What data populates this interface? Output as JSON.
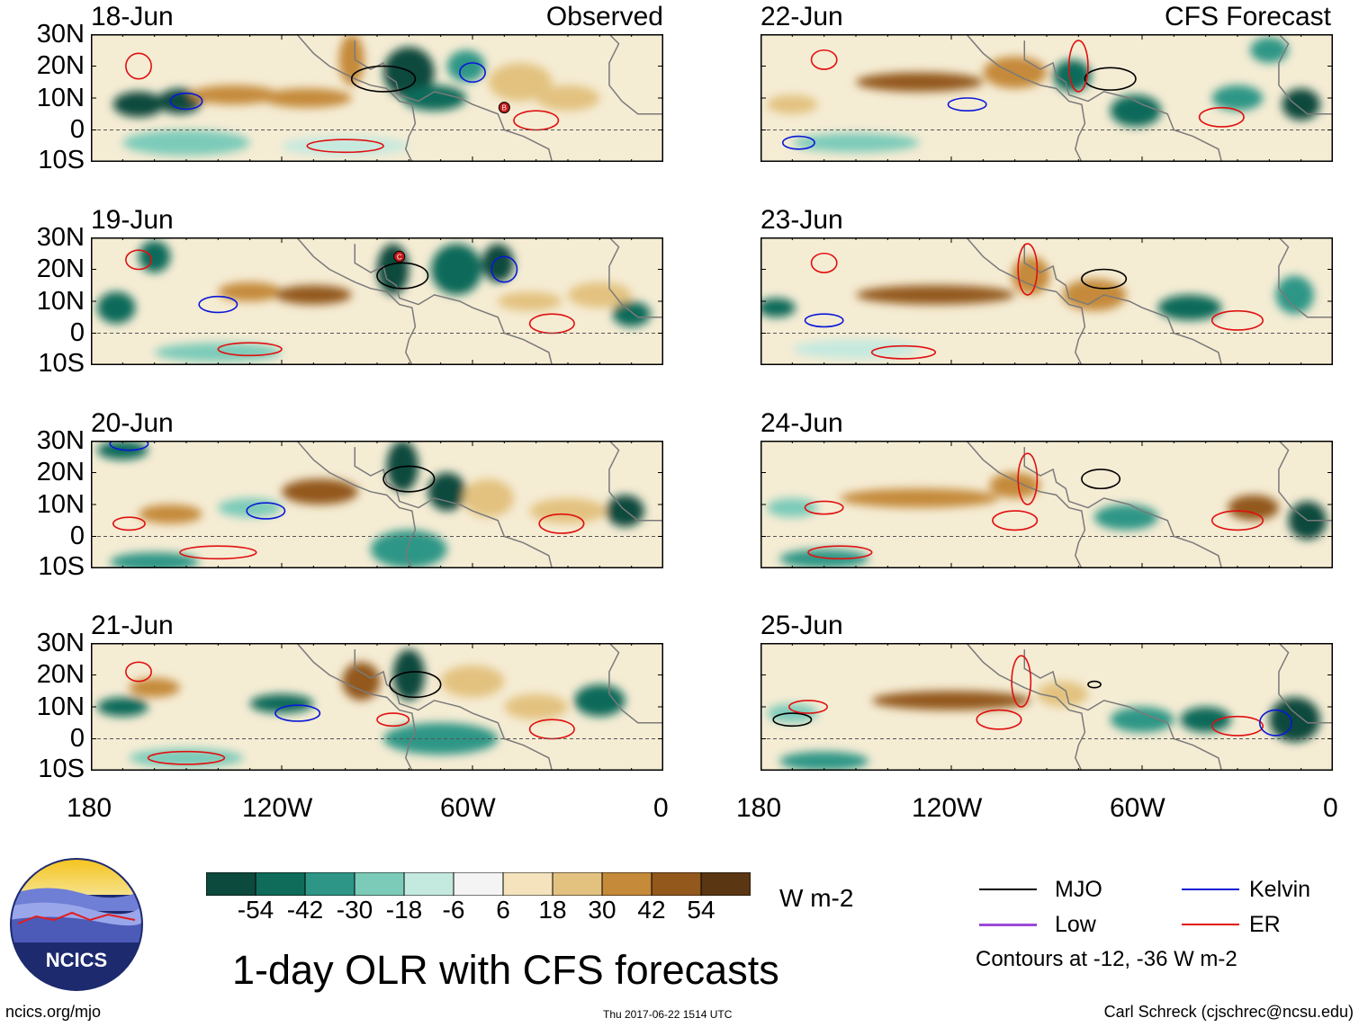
{
  "title": "1-day OLR with CFS forecasts",
  "observed_label": "Observed",
  "forecast_label": "CFS Forecast",
  "panels_left": [
    {
      "date": "18-Jun"
    },
    {
      "date": "19-Jun"
    },
    {
      "date": "20-Jun"
    },
    {
      "date": "21-Jun"
    }
  ],
  "panels_right": [
    {
      "date": "22-Jun"
    },
    {
      "date": "23-Jun"
    },
    {
      "date": "24-Jun"
    },
    {
      "date": "25-Jun"
    }
  ],
  "lat_labels": [
    "30N",
    "20N",
    "10N",
    "0",
    "10S"
  ],
  "lon_labels": [
    "180",
    "120W",
    "60W",
    "0"
  ],
  "storm_markers": [
    {
      "panel": "18-Jun",
      "label": "B"
    },
    {
      "panel": "19-Jun",
      "label": "C"
    }
  ],
  "colorbar": {
    "units": "W m-2",
    "ticks": [
      "-54",
      "-42",
      "-30",
      "-18",
      "-6",
      "6",
      "18",
      "30",
      "42",
      "54"
    ],
    "colors": [
      "#0b4a3c",
      "#0f6b5a",
      "#2e9686",
      "#7ccbb9",
      "#c4e9df",
      "#f4f4f4",
      "#f4e3bd",
      "#e3c280",
      "#c58a3a",
      "#93581b",
      "#5a3612"
    ]
  },
  "legend": {
    "items": [
      {
        "label": "MJO",
        "color": "#000000"
      },
      {
        "label": "Kelvin",
        "color": "#0a18d6"
      },
      {
        "label": "Low",
        "color": "#9a4bd8"
      },
      {
        "label": "ER",
        "color": "#e01010"
      }
    ],
    "note": "Contours at -12, -36 W m-2"
  },
  "footer": {
    "url": "ncics.org/mjo",
    "timestamp": "Thu 2017-06-22 1514 UTC",
    "author": "Carl Schreck (cjschrec@ncsu.edu)"
  },
  "logo": {
    "text": "NCICS"
  }
}
